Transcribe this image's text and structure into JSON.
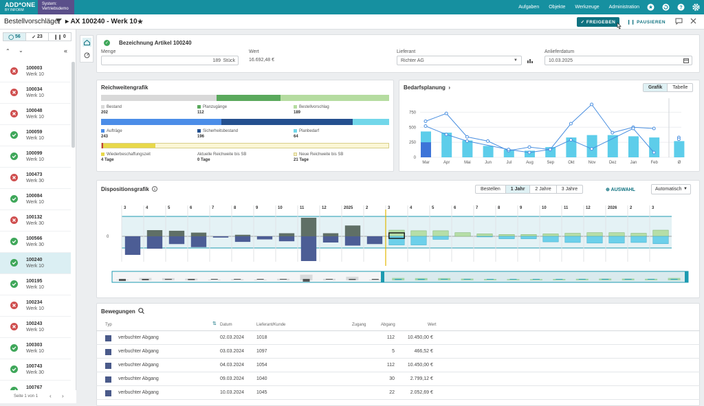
{
  "topbar": {
    "logo_line1": "ADD*ONE",
    "logo_line2": "BY INFORM",
    "system_line1": "System:",
    "system_line2": "Vertriebsdemo",
    "nav": [
      "Aufgaben",
      "Objekte",
      "Werkzeuge",
      "Administration"
    ]
  },
  "header": {
    "title": "Bestellvorschläge",
    "crumb": "AX 100240 - Werk 10",
    "release_label": "FREIGEBEN",
    "pause_label": "PAUSIEREN"
  },
  "sidebar": {
    "counts": [
      "56",
      "23",
      "0"
    ],
    "pager": "Seite 1 von 1",
    "items": [
      {
        "id": "100003",
        "plant": "Werk 10",
        "status": "err"
      },
      {
        "id": "100034",
        "plant": "Werk 10",
        "status": "err"
      },
      {
        "id": "100048",
        "plant": "Werk 10",
        "status": "err"
      },
      {
        "id": "100059",
        "plant": "Werk 10",
        "status": "ok"
      },
      {
        "id": "100099",
        "plant": "Werk 10",
        "status": "ok"
      },
      {
        "id": "100473",
        "plant": "Werk 30",
        "status": "err"
      },
      {
        "id": "100084",
        "plant": "Werk 10",
        "status": "ok"
      },
      {
        "id": "100132",
        "plant": "Werk 30",
        "status": "err"
      },
      {
        "id": "100566",
        "plant": "Werk 30",
        "status": "ok"
      },
      {
        "id": "100240",
        "plant": "Werk 10",
        "status": "ok",
        "selected": true
      },
      {
        "id": "100195",
        "plant": "Werk 10",
        "status": "ok"
      },
      {
        "id": "100234",
        "plant": "Werk 10",
        "status": "err"
      },
      {
        "id": "100243",
        "plant": "Werk 10",
        "status": "err"
      },
      {
        "id": "100303",
        "plant": "Werk 10",
        "status": "ok"
      },
      {
        "id": "100743",
        "plant": "Werk 30",
        "status": "ok"
      },
      {
        "id": "100767",
        "plant": "Werk 10",
        "status": "ok"
      }
    ]
  },
  "article": {
    "title": "Bezeichnung Artikel 100240",
    "menge_label": "Menge",
    "menge_value": "189",
    "menge_unit": "Stück",
    "wert_label": "Wert",
    "wert_value": "16.692,48 €",
    "lieferant_label": "Lieferant",
    "lieferant_value": "Richter AG",
    "datum_label": "Anlieferdatum",
    "datum_value": "10.03.2025"
  },
  "reichweite": {
    "title": "Reichweitengrafik",
    "row1": [
      {
        "label": "Bestand",
        "value": "202",
        "color": "#d9d9d9"
      },
      {
        "label": "Planzugänge",
        "value": "112",
        "color": "#5aa95c"
      },
      {
        "label": "Bestellvorschlag",
        "value": "189",
        "color": "#b5dca0"
      }
    ],
    "row2": [
      {
        "label": "Aufträge",
        "value": "243",
        "color": "#4b8de8"
      },
      {
        "label": "Sicherheitsbestand",
        "value": "196",
        "color": "#24508f"
      },
      {
        "label": "Planbedarf",
        "value": "64",
        "color": "#72d7ea"
      }
    ],
    "row3": [
      {
        "label": "Wiederbeschaffungszeit",
        "value": "4 Tage",
        "color": "#e8d84a"
      },
      {
        "label": "Aktuelle Reichweite bis SB",
        "value": "0 Tage",
        "color": ""
      },
      {
        "label": "Neue Reichweite bis SB",
        "value": "21 Tage",
        "color": "#f5efc0"
      }
    ]
  },
  "bedarf": {
    "title": "Bedarfsplanung",
    "tab_grafik": "Grafik",
    "tab_tabelle": "Tabelle"
  },
  "chart_data": {
    "type": "bar",
    "categories": [
      "Mar",
      "Apr",
      "Mai",
      "Jun",
      "Jul",
      "Aug",
      "Sep",
      "Okt",
      "Nov",
      "Dez",
      "Jan",
      "Feb",
      "Ø"
    ],
    "yticks": [
      "0",
      "250",
      "500",
      "750"
    ],
    "ylim": [
      0,
      800
    ],
    "series": [
      {
        "values": [
          430,
          410,
          280,
          190,
          130,
          110,
          170,
          330,
          370,
          370,
          350,
          330,
          270
        ]
      },
      {
        "values": [
          250,
          0,
          0,
          0,
          0,
          0,
          0,
          0,
          0,
          0,
          0,
          0,
          0
        ]
      },
      {
        "values": [
          600,
          730,
          340,
          270,
          110,
          170,
          130,
          560,
          880,
          410,
          500,
          480,
          330
        ]
      },
      {
        "values": [
          520,
          380,
          270,
          0,
          130,
          80,
          130,
          290,
          140,
          0,
          480,
          80,
          300
        ]
      }
    ]
  },
  "dispo": {
    "title": "Dispositionsgrafik",
    "tabs": [
      "Bestellen",
      "1 Jahr",
      "2 Jahre",
      "3 Jahre"
    ],
    "active_tab": "1 Jahr",
    "auswahl": "AUSWAHL",
    "dropdown": "Automatisch",
    "zero": "0",
    "months": [
      "3",
      "4",
      "5",
      "6",
      "7",
      "8",
      "9",
      "10",
      "11",
      "12",
      "2025",
      "2",
      "3",
      "4",
      "5",
      "6",
      "7",
      "8",
      "9",
      "10",
      "11",
      "12",
      "2026",
      "2",
      "3"
    ],
    "bars": [
      {
        "up": 0,
        "down": 60
      },
      {
        "up": 20,
        "down": 40
      },
      {
        "up": 18,
        "down": 25
      },
      {
        "up": 12,
        "down": 35
      },
      {
        "up": 0,
        "down": 4
      },
      {
        "up": 5,
        "down": 18
      },
      {
        "up": 0,
        "down": 10
      },
      {
        "up": 10,
        "down": 16
      },
      {
        "up": 60,
        "down": 80
      },
      {
        "up": 10,
        "down": 20
      },
      {
        "up": 35,
        "down": 30
      },
      {
        "up": 0,
        "down": 25
      },
      {
        "up": 20,
        "down": 28
      },
      {
        "up": 18,
        "down": 28
      },
      {
        "up": 18,
        "down": 10
      },
      {
        "up": 12,
        "down": 0
      },
      {
        "up": 8,
        "down": 2
      },
      {
        "up": 6,
        "down": 8
      },
      {
        "up": 6,
        "down": 8
      },
      {
        "up": 8,
        "down": 18
      },
      {
        "up": 10,
        "down": 20
      },
      {
        "up": 12,
        "down": 22
      },
      {
        "up": 12,
        "down": 22
      },
      {
        "up": 10,
        "down": 20
      },
      {
        "up": 20,
        "down": 24
      }
    ]
  },
  "bewegungen": {
    "title": "Bewegungen",
    "cols": [
      "Typ",
      "Datum",
      "Lieferant/Kunde",
      "Zugang",
      "Abgang",
      "Wert"
    ],
    "rows": [
      {
        "typ": "verbuchter Abgang",
        "datum": "02.03.2024",
        "partner": "1018",
        "zugang": "",
        "abgang": "112",
        "wert": "10.450,00",
        "cur": "€"
      },
      {
        "typ": "verbuchter Abgang",
        "datum": "03.03.2024",
        "partner": "1097",
        "zugang": "",
        "abgang": "5",
        "wert": "466,52",
        "cur": "€"
      },
      {
        "typ": "verbuchter Abgang",
        "datum": "04.03.2024",
        "partner": "1054",
        "zugang": "",
        "abgang": "112",
        "wert": "10.450,00",
        "cur": "€"
      },
      {
        "typ": "verbuchter Abgang",
        "datum": "09.03.2024",
        "partner": "1040",
        "zugang": "",
        "abgang": "30",
        "wert": "2.799,12",
        "cur": "€"
      },
      {
        "typ": "verbuchter Abgang",
        "datum": "10.03.2024",
        "partner": "1045",
        "zugang": "",
        "abgang": "22",
        "wert": "2.052,69",
        "cur": "€"
      }
    ]
  }
}
